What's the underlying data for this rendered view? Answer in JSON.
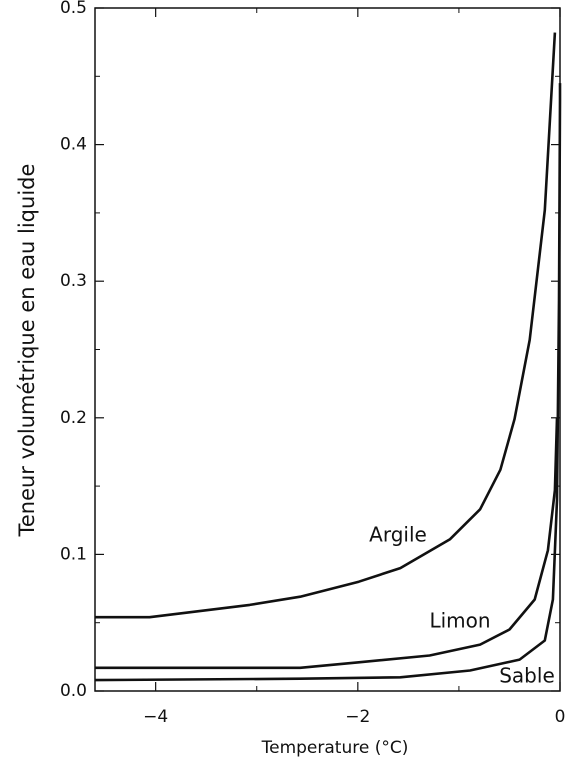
{
  "chart_data": {
    "type": "line",
    "xlabel": "Temperature (°C)",
    "ylabel": "Teneur volumétrique en eau liquide",
    "xlim": [
      -4.6,
      0
    ],
    "ylim": [
      0,
      0.5
    ],
    "xticks": [
      {
        "value": -4,
        "label": "−4"
      },
      {
        "value": -2,
        "label": "−2"
      },
      0
    ],
    "xminor_ticks": [
      -3,
      -1
    ],
    "yticks": [
      {
        "value": 0,
        "label": "0.0"
      },
      0.1,
      0.2,
      0.3,
      0.4,
      0.5
    ],
    "yminor_ticks": [
      0.05,
      0.15,
      0.25,
      0.35,
      0.45
    ],
    "series": [
      {
        "name": "Argile",
        "color": "#111111",
        "x": [
          -4.6,
          -4.06,
          -3.07,
          -2.57,
          -1.99,
          -1.58,
          -1.09,
          -0.79,
          -0.59,
          -0.45,
          -0.3,
          -0.15,
          -0.05
        ],
        "values": [
          0.054,
          0.054,
          0.063,
          0.069,
          0.08,
          0.09,
          0.111,
          0.133,
          0.162,
          0.199,
          0.257,
          0.352,
          0.482
        ]
      },
      {
        "name": "Limon",
        "color": "#111111",
        "x": [
          -4.6,
          -2.57,
          -1.99,
          -1.29,
          -0.79,
          -0.5,
          -0.25,
          -0.12,
          -0.05,
          -0.03
        ],
        "values": [
          0.017,
          0.017,
          0.021,
          0.026,
          0.034,
          0.045,
          0.067,
          0.103,
          0.147,
          0.2
        ]
      },
      {
        "name": "Sable",
        "color": "#111111",
        "x": [
          -4.6,
          -2.57,
          -1.58,
          -0.89,
          -0.4,
          -0.15,
          -0.07,
          -0.03,
          -0.01,
          0,
          0
        ],
        "values": [
          0.008,
          0.009,
          0.01,
          0.015,
          0.023,
          0.037,
          0.067,
          0.14,
          0.286,
          0.433,
          0.445
        ]
      }
    ]
  }
}
